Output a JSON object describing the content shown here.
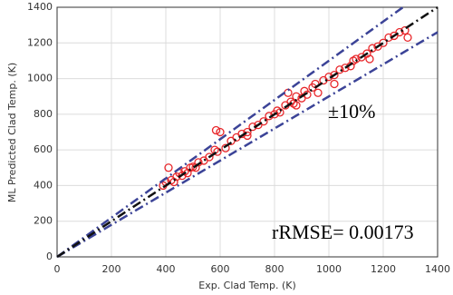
{
  "chart_data": {
    "type": "scatter",
    "xlabel": "Exp. Clad Temp. (K)",
    "ylabel": "ML Predicted Clad Temp. (K)",
    "xlim": [
      0,
      1400
    ],
    "ylim": [
      0,
      1400
    ],
    "xticks": [
      0,
      200,
      400,
      600,
      800,
      1000,
      1200,
      1400
    ],
    "yticks": [
      0,
      200,
      400,
      600,
      800,
      1000,
      1200,
      1400
    ],
    "grid": true,
    "annotations": [
      "±10%",
      "rRMSE= 0.00173"
    ],
    "reference_lines": [
      {
        "slope": 1.1,
        "color": "#3b4397"
      },
      {
        "slope": 0.9,
        "color": "#3b4397"
      },
      {
        "slope": 1,
        "color": "#111111"
      }
    ],
    "series": [
      {
        "color": "#e8262a",
        "x": [
          390,
          400,
          410,
          420,
          430,
          440,
          450,
          460,
          470,
          480,
          490,
          500,
          510,
          520,
          540,
          560,
          580,
          585,
          590,
          600,
          620,
          640,
          660,
          680,
          700,
          720,
          740,
          760,
          780,
          800,
          810,
          820,
          840,
          850,
          860,
          870,
          880,
          900,
          910,
          920,
          940,
          950,
          960,
          980,
          1000,
          1020,
          1040,
          1060,
          1080,
          1090,
          1100,
          1120,
          1140,
          1160,
          1180,
          1200,
          1220,
          1240,
          1260,
          1280,
          1290,
          700,
          880,
          1020,
          1150
        ],
        "y": [
          400,
          420,
          500,
          430,
          420,
          450,
          470,
          455,
          480,
          470,
          500,
          505,
          500,
          530,
          540,
          560,
          600,
          710,
          590,
          700,
          610,
          650,
          670,
          690,
          700,
          730,
          740,
          760,
          790,
          800,
          820,
          810,
          850,
          920,
          870,
          860,
          900,
          890,
          930,
          910,
          950,
          970,
          920,
          990,
          1010,
          1020,
          1050,
          1060,
          1070,
          1100,
          1110,
          1120,
          1140,
          1170,
          1180,
          1200,
          1230,
          1240,
          1260,
          1270,
          1230,
          680,
          850,
          970,
          1110
        ]
      }
    ]
  }
}
